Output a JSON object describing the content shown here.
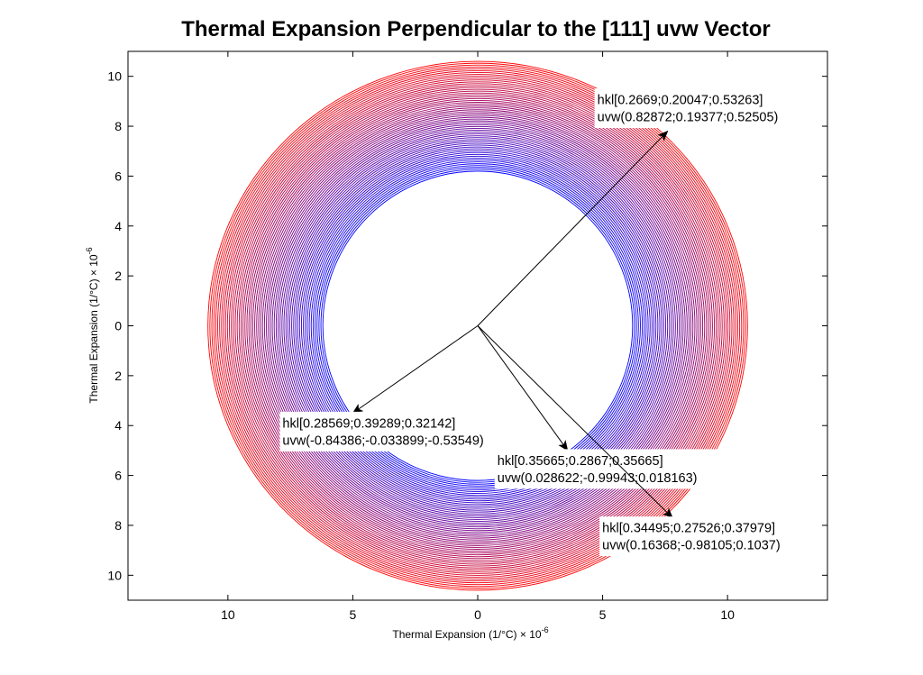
{
  "chart_data": {
    "type": "line",
    "title": "Thermal Expansion Perpendicular to the [111] uvw Vector",
    "xlabel": {
      "text": "Thermal Expansion (1/°C) × 10",
      "exponent": "-6"
    },
    "ylabel": {
      "text": "Thermal Expansion (1/°C) × 10",
      "exponent": "-6"
    },
    "xlim": [
      -14,
      14
    ],
    "ylim": [
      -11,
      11
    ],
    "x_tick_values": [
      -10,
      -5,
      0,
      5,
      10
    ],
    "x_tick_labels": [
      "10",
      "5",
      "0",
      "5",
      "10"
    ],
    "y_tick_values": [
      10,
      8,
      6,
      4,
      2,
      0,
      -2,
      -4,
      -6,
      -8,
      -10
    ],
    "y_tick_labels": [
      "10",
      "8",
      "6",
      "4",
      "2",
      "0",
      "2",
      "4",
      "6",
      "8",
      "10"
    ],
    "grid": false,
    "rings": {
      "count": 60,
      "inner_radius": 6.2,
      "outer_radius_x": 10.8,
      "outer_radius_y": 10.6,
      "color_inner": "#0000ff",
      "color_outer": "#ff0000"
    },
    "vectors": [
      {
        "x": 7.6,
        "y": 7.8,
        "label_lines": [
          "hkl[0.2669;0.20047;0.53263]",
          "uvw(0.82872;0.19377;0.52505)"
        ]
      },
      {
        "x": -5.0,
        "y": -3.5,
        "label_lines": [
          "hkl[0.28569;0.39289;0.32142]",
          "uvw(-0.84386;-0.033899;-0.53549)"
        ]
      },
      {
        "x": 3.6,
        "y": -5.0,
        "label_lines": [
          "hkl[0.35665;0.2867;0.35665]",
          "uvw(0.028622;-0.99943;0.018163)"
        ]
      },
      {
        "x": 7.8,
        "y": -7.7,
        "label_lines": [
          "hkl[0.34495;0.27526;0.37979]",
          "uvw(0.16368;-0.98105;0.1037)"
        ]
      }
    ]
  }
}
